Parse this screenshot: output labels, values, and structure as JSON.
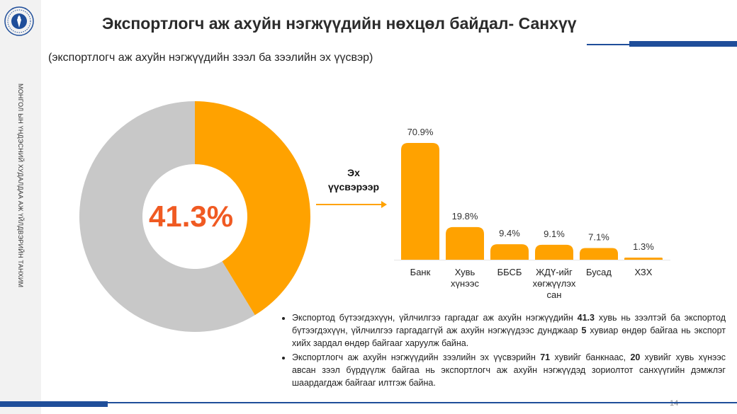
{
  "sidebar": {
    "vertical_text": "МОНГОЛ ЫН ҮНДЭСНИЙ ХУДАЛДАА АЖ ҮЙЛДВЭРИЙН ТАНХИМ"
  },
  "header": {
    "title": "Экспортлогч аж ахуйн нэгжүүдийн нөхцөл байдал- Санхүү",
    "subtitle": "(экспортлогч аж ахуйн нэгжүүдийн зээл ба зээлийн эх үүсвэр)",
    "accent_color": "#1f4e9a"
  },
  "flow": {
    "label_line1": "Эх",
    "label_line2": "үүсвэрээр"
  },
  "chart_data": [
    {
      "type": "pie",
      "values": [
        41.3,
        58.7
      ],
      "center_label": "41.3%",
      "colors": [
        "#ffa200",
        "#c8c8c8"
      ],
      "center_label_color": "#f05a22"
    },
    {
      "type": "bar",
      "categories": [
        "Банк",
        "Хувь хүнээс",
        "ББСБ",
        "ЖДҮ-ийг хөгжүүлэх сан",
        "Бусад",
        "ХЗХ"
      ],
      "category_lines": [
        [
          "Банк"
        ],
        [
          "Хувь",
          "хүнээс"
        ],
        [
          "ББСБ"
        ],
        [
          "ЖДҮ-ийг",
          "хөгжүүлэх",
          "сан"
        ],
        [
          "Бусад"
        ],
        [
          "ХЗХ"
        ]
      ],
      "values": [
        70.9,
        19.8,
        9.4,
        9.1,
        7.1,
        1.3
      ],
      "value_labels": [
        "70.9%",
        "19.8%",
        "9.4%",
        "9.1%",
        "7.1%",
        "1.3%"
      ],
      "bar_color": "#ffa200",
      "ylim": [
        0,
        70.9
      ]
    }
  ],
  "notes": {
    "bullet1": {
      "part1": "Экспортод бүтээгдэхүүн, үйлчилгээ гаргадаг аж ахуйн нэгжүүдийн ",
      "bold1": "41.3",
      "part2": " хувь нь зээлтэй ба экспортод бүтээгдэхүүн, үйлчилгээ гаргадаггүй аж ахуйн нэгжүүдээс дунджаар ",
      "bold2": "5",
      "part3": " хувиар өндөр байгаа нь экспорт хийх зардал өндөр байгааг харуулж байна."
    },
    "bullet2": {
      "part1": "Экспортлогч аж ахуйн нэгжүүдийн зээлийн эх үүсвэрийн ",
      "bold1": "71",
      "part2": " хувийг банкнаас, ",
      "bold2": "20",
      "part3": " хувийг хувь хүнээс авсан зээл бүрдүүлж байгаа нь экспортлогч аж ахуйн нэгжүүдэд зориолтот санхүүгийн дэмжлэг шаардагдаж байгааг илтгэж байна."
    }
  },
  "page_number": "14"
}
